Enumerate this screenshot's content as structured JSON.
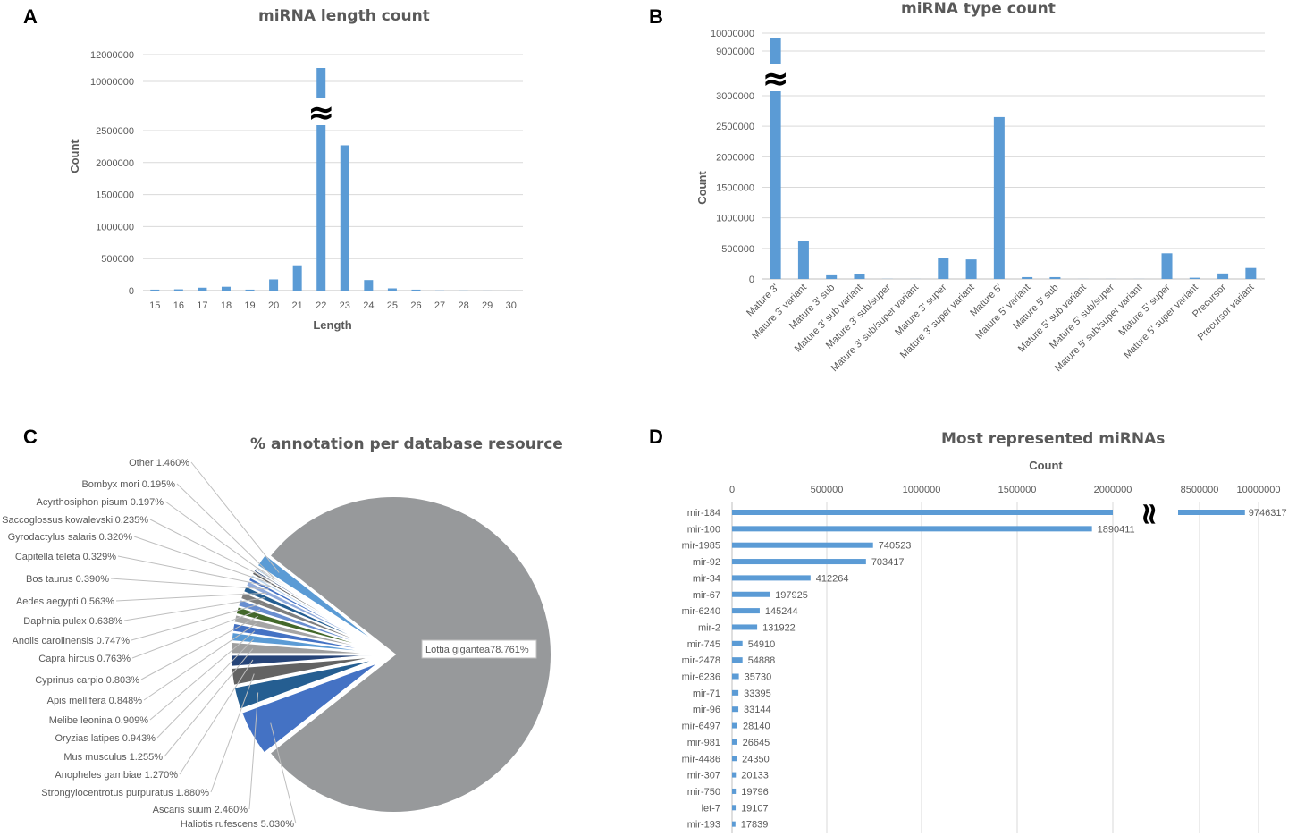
{
  "panel_labels": {
    "a": "A",
    "b": "B",
    "c": "C",
    "d": "D"
  },
  "colors": {
    "bar": "#5b9bd5",
    "grid": "#d9d9d9",
    "axis": "#bfbfbf",
    "text": "#595959",
    "pie_main": "#97999b"
  },
  "break_symbol": "≈",
  "chart_data": [
    {
      "id": "A",
      "type": "bar",
      "title": "miRNA length count",
      "xlabel": "Length",
      "ylabel": "Count",
      "categories": [
        "15",
        "16",
        "17",
        "18",
        "19",
        "20",
        "21",
        "22",
        "23",
        "24",
        "25",
        "26",
        "27",
        "28",
        "29",
        "30"
      ],
      "values": [
        15000,
        20000,
        45000,
        60000,
        15000,
        175000,
        395000,
        11000000,
        2270000,
        165000,
        35000,
        15000,
        3000,
        2000,
        1000,
        500
      ],
      "yticks": [
        "0",
        "500000",
        "1000000",
        "1500000",
        "2000000",
        "2500000",
        "10000000",
        "12000000"
      ],
      "axis_break": {
        "from": 2500000,
        "to": 10000000
      }
    },
    {
      "id": "B",
      "type": "bar",
      "title": "miRNA type count",
      "xlabel": "",
      "ylabel": "Count",
      "categories": [
        "Mature 3'",
        "Mature 3' variant",
        "Mature 3' sub",
        "Mature 3' sub variant",
        "Mature 3' sub/super",
        "Mature 3' sub/super variant",
        "Mature 3' super",
        "Mature 3' super variant",
        "Mature 5'",
        "Mature 5' variant",
        "Mature 5' sub",
        "Mature 5' sub variant",
        "Mature 5' sub/super",
        "Mature 5' sub/super variant",
        "Mature 5' super",
        "Mature 5' super variant",
        "Precursor",
        "Precursor variant"
      ],
      "values": [
        9750000,
        620000,
        60000,
        80000,
        2000,
        1000,
        350000,
        320000,
        2650000,
        30000,
        30000,
        1000,
        1000,
        1000,
        420000,
        20000,
        90000,
        180000
      ],
      "yticks": [
        "0",
        "500000",
        "1000000",
        "1500000",
        "2000000",
        "2500000",
        "3000000",
        "9000000",
        "10000000"
      ],
      "axis_break": {
        "from": 3000000,
        "to": 9000000
      }
    },
    {
      "id": "C",
      "type": "pie",
      "title": "% annotation  per database resource",
      "slices": [
        {
          "label": "Lottia gigantea",
          "value": 78.761,
          "text": "78.761%"
        },
        {
          "label": "Haliotis rufescens",
          "value": 5.03,
          "text": "5.030%"
        },
        {
          "label": "Ascaris suum",
          "value": 2.46,
          "text": "2.460%"
        },
        {
          "label": "Strongylocentrotus purpuratus",
          "value": 1.88,
          "text": "1.880%"
        },
        {
          "label": "Anopheles gambiae",
          "value": 1.27,
          "text": "1.270%"
        },
        {
          "label": "Mus musculus",
          "value": 1.255,
          "text": "1.255%"
        },
        {
          "label": "Oryzias latipes",
          "value": 0.943,
          "text": "0.943%"
        },
        {
          "label": "Melibe leonina",
          "value": 0.909,
          "text": "0.909%"
        },
        {
          "label": "Apis mellifera",
          "value": 0.848,
          "text": "0.848%"
        },
        {
          "label": "Cyprinus carpio",
          "value": 0.803,
          "text": "0.803%"
        },
        {
          "label": "Capra hircus",
          "value": 0.763,
          "text": "0.763%"
        },
        {
          "label": "Anolis carolinensis",
          "value": 0.747,
          "text": "0.747%"
        },
        {
          "label": "Daphnia pulex",
          "value": 0.638,
          "text": "0.638%"
        },
        {
          "label": "Aedes aegypti",
          "value": 0.563,
          "text": "0.563%"
        },
        {
          "label": "Bos taurus",
          "value": 0.39,
          "text": "0.390%"
        },
        {
          "label": "Capitella teleta",
          "value": 0.329,
          "text": "0.329%"
        },
        {
          "label": "Gyrodactylus salaris",
          "value": 0.32,
          "text": "0.320%"
        },
        {
          "label": "Saccoglossus kowalevskii",
          "value": 0.235,
          "text": "0.235%"
        },
        {
          "label": "Acyrthosiphon pisum",
          "value": 0.197,
          "text": "0.197%"
        },
        {
          "label": "Bombyx mori",
          "value": 0.195,
          "text": "0.195%"
        },
        {
          "label": "Other",
          "value": 1.46,
          "text": "1.460%"
        }
      ],
      "label_texts": {
        "Lottia gigantea": "Lottia gigantea78.761%",
        "Haliotis rufescens": "Haliotis rufescens 5.030%",
        "Ascaris suum": "Ascaris suum 2.460%",
        "Strongylocentrotus purpuratus": "Strongylocentrotus purpuratus 1.880%",
        "Anopheles gambiae": "Anopheles gambiae 1.270%",
        "Mus musculus": "Mus musculus 1.255%",
        "Oryzias latipes": "Oryzias latipes 0.943%",
        "Melibe leonina": "Melibe leonina 0.909%",
        "Apis mellifera": "Apis mellifera 0.848%",
        "Cyprinus carpio": "Cyprinus carpio 0.803%",
        "Capra hircus": "Capra hircus 0.763%",
        "Anolis carolinensis": "Anolis carolinensis 0.747%",
        "Daphnia pulex": "Daphnia pulex 0.638%",
        "Aedes aegypti": "Aedes aegypti 0.563%",
        "Bos taurus": "Bos taurus 0.390%",
        "Capitella teleta": "Capitella teleta 0.329%",
        "Gyrodactylus salaris": "Gyrodactylus salaris 0.320%",
        "Saccoglossus kowalevskii": "Saccoglossus kowalevskii0.235%",
        "Acyrthosiphon pisum": "Acyrthosiphon pisum 0.197%",
        "Bombyx mori": "Bombyx mori 0.195%",
        "Other": "Other 1.460%"
      }
    },
    {
      "id": "D",
      "type": "bar",
      "orientation": "horizontal",
      "title": "Most represented miRNAs",
      "xlabel": "Count",
      "categories": [
        "mir-184",
        "mir-100",
        "mir-1985",
        "mir-92",
        "mir-34",
        "mir-67",
        "mir-6240",
        "mir-2",
        "mir-745",
        "mir-2478",
        "mir-6236",
        "mir-71",
        "mir-96",
        "mir-6497",
        "mir-981",
        "mir-4486",
        "mir-307",
        "mir-750",
        "let-7",
        "mir-193"
      ],
      "values": [
        9746317,
        1890411,
        740523,
        703417,
        412264,
        197925,
        145244,
        131922,
        54910,
        54888,
        35730,
        33395,
        33144,
        28140,
        26645,
        24350,
        20133,
        19796,
        19107,
        17839
      ],
      "xticks": [
        "0",
        "500000",
        "1000000",
        "1500000",
        "2000000",
        "8500000",
        "10000000"
      ],
      "axis_break": {
        "from": 2000000,
        "to": 8500000
      }
    }
  ]
}
